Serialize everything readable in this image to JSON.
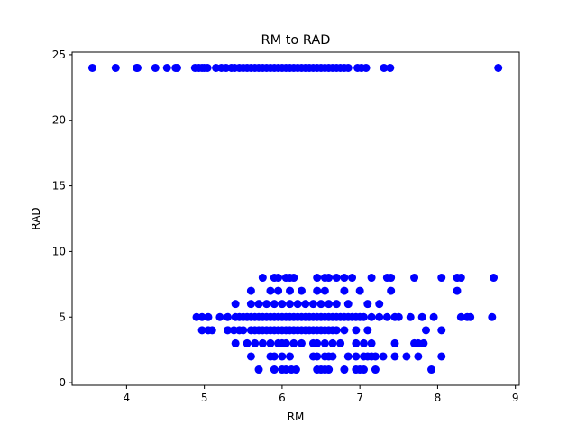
{
  "chart_data": {
    "type": "scatter",
    "title": "RM to RAD",
    "xlabel": "RM",
    "ylabel": "RAD",
    "xlim": [
      3.3,
      9.05
    ],
    "ylim": [
      -0.2,
      25.2
    ],
    "xticks": [
      "4",
      "5",
      "6",
      "7",
      "8",
      "9"
    ],
    "yticks": [
      "0",
      "5",
      "10",
      "15",
      "20",
      "25"
    ],
    "grid": false,
    "marker_color": "#0000ff",
    "series": [
      {
        "points": [
          [
            3.56,
            24
          ],
          [
            3.86,
            24
          ],
          [
            4.13,
            24
          ],
          [
            4.14,
            24
          ],
          [
            4.37,
            24
          ],
          [
            4.52,
            24
          ],
          [
            4.63,
            24
          ],
          [
            4.65,
            24
          ],
          [
            4.88,
            24
          ],
          [
            4.93,
            24
          ],
          [
            4.97,
            24
          ],
          [
            5.0,
            24
          ],
          [
            5.04,
            24
          ],
          [
            5.15,
            24
          ],
          [
            5.22,
            24
          ],
          [
            5.28,
            24
          ],
          [
            5.35,
            24
          ],
          [
            5.39,
            24
          ],
          [
            5.45,
            24
          ],
          [
            5.5,
            24
          ],
          [
            5.55,
            24
          ],
          [
            5.6,
            24
          ],
          [
            5.65,
            24
          ],
          [
            5.7,
            24
          ],
          [
            5.75,
            24
          ],
          [
            5.8,
            24
          ],
          [
            5.85,
            24
          ],
          [
            5.9,
            24
          ],
          [
            5.95,
            24
          ],
          [
            6.0,
            24
          ],
          [
            6.05,
            24
          ],
          [
            6.1,
            24
          ],
          [
            6.15,
            24
          ],
          [
            6.2,
            24
          ],
          [
            6.25,
            24
          ],
          [
            6.3,
            24
          ],
          [
            6.35,
            24
          ],
          [
            6.4,
            24
          ],
          [
            6.45,
            24
          ],
          [
            6.5,
            24
          ],
          [
            6.55,
            24
          ],
          [
            6.6,
            24
          ],
          [
            6.65,
            24
          ],
          [
            6.7,
            24
          ],
          [
            6.75,
            24
          ],
          [
            6.8,
            24
          ],
          [
            6.85,
            24
          ],
          [
            6.97,
            24
          ],
          [
            7.02,
            24
          ],
          [
            7.08,
            24
          ],
          [
            7.31,
            24
          ],
          [
            7.39,
            24
          ],
          [
            8.78,
            24
          ],
          [
            5.75,
            8
          ],
          [
            5.9,
            8
          ],
          [
            5.95,
            8
          ],
          [
            6.05,
            8
          ],
          [
            6.1,
            8
          ],
          [
            6.15,
            8
          ],
          [
            6.45,
            8
          ],
          [
            6.55,
            8
          ],
          [
            6.6,
            8
          ],
          [
            6.7,
            8
          ],
          [
            6.8,
            8
          ],
          [
            6.9,
            8
          ],
          [
            7.15,
            8
          ],
          [
            7.35,
            8
          ],
          [
            7.4,
            8
          ],
          [
            7.7,
            8
          ],
          [
            8.05,
            8
          ],
          [
            8.25,
            8
          ],
          [
            8.3,
            8
          ],
          [
            8.72,
            8
          ],
          [
            5.6,
            7
          ],
          [
            5.85,
            7
          ],
          [
            5.95,
            7
          ],
          [
            6.1,
            7
          ],
          [
            6.25,
            7
          ],
          [
            6.45,
            7
          ],
          [
            6.55,
            7
          ],
          [
            6.8,
            7
          ],
          [
            7.0,
            7
          ],
          [
            7.4,
            7
          ],
          [
            8.25,
            7
          ],
          [
            5.4,
            6
          ],
          [
            5.6,
            6
          ],
          [
            5.7,
            6
          ],
          [
            5.8,
            6
          ],
          [
            5.9,
            6
          ],
          [
            6.0,
            6
          ],
          [
            6.1,
            6
          ],
          [
            6.2,
            6
          ],
          [
            6.3,
            6
          ],
          [
            6.4,
            6
          ],
          [
            6.5,
            6
          ],
          [
            6.6,
            6
          ],
          [
            6.7,
            6
          ],
          [
            6.85,
            6
          ],
          [
            7.1,
            6
          ],
          [
            7.25,
            6
          ],
          [
            4.9,
            5
          ],
          [
            4.97,
            5
          ],
          [
            5.05,
            5
          ],
          [
            5.2,
            5
          ],
          [
            5.3,
            5
          ],
          [
            5.4,
            5
          ],
          [
            5.45,
            5
          ],
          [
            5.5,
            5
          ],
          [
            5.55,
            5
          ],
          [
            5.6,
            5
          ],
          [
            5.65,
            5
          ],
          [
            5.7,
            5
          ],
          [
            5.75,
            5
          ],
          [
            5.8,
            5
          ],
          [
            5.85,
            5
          ],
          [
            5.9,
            5
          ],
          [
            5.95,
            5
          ],
          [
            6.0,
            5
          ],
          [
            6.05,
            5
          ],
          [
            6.1,
            5
          ],
          [
            6.15,
            5
          ],
          [
            6.2,
            5
          ],
          [
            6.25,
            5
          ],
          [
            6.3,
            5
          ],
          [
            6.35,
            5
          ],
          [
            6.4,
            5
          ],
          [
            6.45,
            5
          ],
          [
            6.5,
            5
          ],
          [
            6.55,
            5
          ],
          [
            6.6,
            5
          ],
          [
            6.65,
            5
          ],
          [
            6.7,
            5
          ],
          [
            6.75,
            5
          ],
          [
            6.8,
            5
          ],
          [
            6.85,
            5
          ],
          [
            6.9,
            5
          ],
          [
            6.95,
            5
          ],
          [
            7.0,
            5
          ],
          [
            7.05,
            5
          ],
          [
            7.15,
            5
          ],
          [
            7.25,
            5
          ],
          [
            7.35,
            5
          ],
          [
            7.45,
            5
          ],
          [
            7.5,
            5
          ],
          [
            7.65,
            5
          ],
          [
            7.8,
            5
          ],
          [
            7.95,
            5
          ],
          [
            8.3,
            5
          ],
          [
            8.38,
            5
          ],
          [
            8.42,
            5
          ],
          [
            8.7,
            5
          ],
          [
            4.97,
            4
          ],
          [
            5.05,
            4
          ],
          [
            5.1,
            4
          ],
          [
            5.3,
            4
          ],
          [
            5.38,
            4
          ],
          [
            5.45,
            4
          ],
          [
            5.5,
            4
          ],
          [
            5.6,
            4
          ],
          [
            5.65,
            4
          ],
          [
            5.7,
            4
          ],
          [
            5.75,
            4
          ],
          [
            5.8,
            4
          ],
          [
            5.85,
            4
          ],
          [
            5.9,
            4
          ],
          [
            5.95,
            4
          ],
          [
            6.0,
            4
          ],
          [
            6.05,
            4
          ],
          [
            6.1,
            4
          ],
          [
            6.15,
            4
          ],
          [
            6.2,
            4
          ],
          [
            6.25,
            4
          ],
          [
            6.3,
            4
          ],
          [
            6.35,
            4
          ],
          [
            6.4,
            4
          ],
          [
            6.45,
            4
          ],
          [
            6.5,
            4
          ],
          [
            6.55,
            4
          ],
          [
            6.6,
            4
          ],
          [
            6.65,
            4
          ],
          [
            6.7,
            4
          ],
          [
            6.8,
            4
          ],
          [
            6.95,
            4
          ],
          [
            7.1,
            4
          ],
          [
            7.85,
            4
          ],
          [
            8.05,
            4
          ],
          [
            5.4,
            3
          ],
          [
            5.55,
            3
          ],
          [
            5.65,
            3
          ],
          [
            5.75,
            3
          ],
          [
            5.85,
            3
          ],
          [
            5.95,
            3
          ],
          [
            6.0,
            3
          ],
          [
            6.05,
            3
          ],
          [
            6.15,
            3
          ],
          [
            6.25,
            3
          ],
          [
            6.4,
            3
          ],
          [
            6.45,
            3
          ],
          [
            6.55,
            3
          ],
          [
            6.65,
            3
          ],
          [
            6.75,
            3
          ],
          [
            6.95,
            3
          ],
          [
            7.05,
            3
          ],
          [
            7.15,
            3
          ],
          [
            7.45,
            3
          ],
          [
            7.7,
            3
          ],
          [
            7.75,
            3
          ],
          [
            7.82,
            3
          ],
          [
            5.6,
            2
          ],
          [
            5.85,
            2
          ],
          [
            5.9,
            2
          ],
          [
            6.0,
            2
          ],
          [
            6.1,
            2
          ],
          [
            6.4,
            2
          ],
          [
            6.45,
            2
          ],
          [
            6.55,
            2
          ],
          [
            6.6,
            2
          ],
          [
            6.65,
            2
          ],
          [
            6.85,
            2
          ],
          [
            6.95,
            2
          ],
          [
            7.05,
            2
          ],
          [
            7.1,
            2
          ],
          [
            7.15,
            2
          ],
          [
            7.2,
            2
          ],
          [
            7.3,
            2
          ],
          [
            7.45,
            2
          ],
          [
            7.6,
            2
          ],
          [
            7.75,
            2
          ],
          [
            8.05,
            2
          ],
          [
            5.7,
            1
          ],
          [
            5.9,
            1
          ],
          [
            6.0,
            1
          ],
          [
            6.05,
            1
          ],
          [
            6.12,
            1
          ],
          [
            6.18,
            1
          ],
          [
            6.45,
            1
          ],
          [
            6.5,
            1
          ],
          [
            6.55,
            1
          ],
          [
            6.6,
            1
          ],
          [
            6.8,
            1
          ],
          [
            6.95,
            1
          ],
          [
            7.0,
            1
          ],
          [
            7.05,
            1
          ],
          [
            7.2,
            1
          ],
          [
            7.92,
            1
          ]
        ]
      }
    ]
  }
}
